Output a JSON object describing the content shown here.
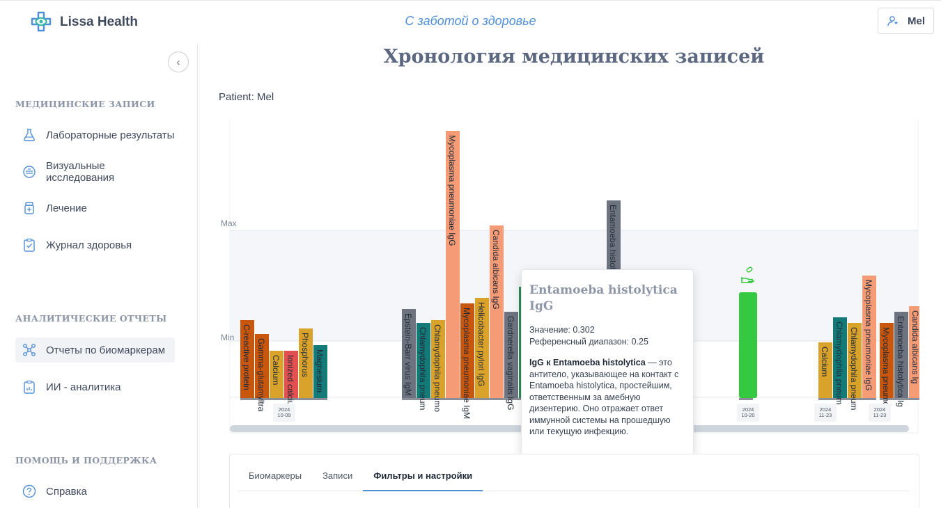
{
  "header": {
    "brand": "Lissa Health",
    "tagline": "С заботой о здоровье",
    "user_name": "Mel"
  },
  "sidebar": {
    "sections": [
      {
        "title": "Медицинские записи",
        "items": [
          {
            "label": "Лабораторные результаты",
            "icon": "flask-icon"
          },
          {
            "label": "Визуальные исследования",
            "icon": "imaging-icon"
          },
          {
            "label": "Лечение",
            "icon": "medication-icon"
          },
          {
            "label": "Журнал здоровья",
            "icon": "clipboard-check-icon"
          }
        ]
      },
      {
        "title": "Аналитические отчеты",
        "items": [
          {
            "label": "Отчеты по биомаркерам",
            "icon": "network-icon",
            "active": true
          },
          {
            "label": "ИИ - аналитика",
            "icon": "report-icon"
          }
        ]
      },
      {
        "title": "Помощь и поддержка",
        "items": [
          {
            "label": "Справка",
            "icon": "help-circle-icon"
          }
        ]
      }
    ]
  },
  "main": {
    "title": "Хронология медицинских записей",
    "patient_label": "Patient: Mel"
  },
  "chart_data": {
    "type": "bar",
    "y_reference_lines": [
      "Max",
      "Min"
    ],
    "date_labels": [
      "2024\n10-09",
      "2024\n10-20",
      "2024\n11-23",
      "2024\n11-23"
    ],
    "groups": [
      {
        "date": "2024-10-09",
        "bars": [
          {
            "label": "C-reactive protein",
            "value": 0.28,
            "color": "#c9560d"
          },
          {
            "label": "Gamma-glutamyltra",
            "value": 0.23,
            "color": "#c9560d"
          },
          {
            "label": "Calcium",
            "value": 0.17,
            "color": "#d9a22a"
          },
          {
            "label": "Ionized calciu",
            "value": 0.17,
            "color": "#e2504f"
          },
          {
            "label": "Phosphorus",
            "value": 0.25,
            "color": "#d9a22a"
          },
          {
            "label": "Magnesium",
            "value": 0.19,
            "color": "#137a78"
          }
        ]
      },
      {
        "date": "",
        "bars": [
          {
            "label": "Epstein-Barr virus IgM",
            "value": 0.32,
            "color": "#6d747f"
          },
          {
            "label": "Chlamydophila pneum",
            "value": 0.27,
            "color": "#137a78"
          },
          {
            "label": "Chlamydophila pneumo",
            "value": 0.28,
            "color": "#d9a22a"
          },
          {
            "label": "Mycoplasma pneumoniae IgG",
            "value": 0.96,
            "color": "#f59b75"
          },
          {
            "label": "Mycoplasma pneumoniae IgM",
            "value": 0.34,
            "color": "#c9560d"
          },
          {
            "label": "Helicobacter pylori IgG",
            "value": 0.36,
            "color": "#d9a22a"
          },
          {
            "label": "Candida albicans IgG",
            "value": 0.62,
            "color": "#f59b75"
          },
          {
            "label": "Gardnerella vaginalis IgG",
            "value": 0.31,
            "color": "#6d747f"
          },
          {
            "label": "",
            "value": 0.4,
            "color": "#2f8a55"
          }
        ]
      },
      {
        "date": "",
        "bars": [
          {
            "label": "Entamoeba histolytica IgG",
            "value": 0.71,
            "color": "#6d747f"
          }
        ]
      },
      {
        "date": "2024-10-20",
        "bars": [
          {
            "label": "",
            "value": 0.38,
            "color": "#34c941"
          }
        ]
      },
      {
        "date": "2024-11-23",
        "bars": [
          {
            "label": "Calcium",
            "value": 0.2,
            "color": "#d9a22a"
          },
          {
            "label": "Chlamydophila pneum",
            "value": 0.29,
            "color": "#137a78"
          },
          {
            "label": "Chlamydophila pneum",
            "value": 0.27,
            "color": "#d9a22a"
          },
          {
            "label": "Mycoplasma pneumoniae IgG",
            "value": 0.44,
            "color": "#f59b75"
          }
        ]
      },
      {
        "date": "2024-11-23",
        "bars": [
          {
            "label": "Mycoplasma pneumo",
            "value": 0.27,
            "color": "#c9560d"
          },
          {
            "label": "Entamoeba histolytica Ig",
            "value": 0.31,
            "color": "#6d747f"
          },
          {
            "label": "Candida albicans Ig",
            "value": 0.33,
            "color": "#f59b75"
          }
        ]
      }
    ]
  },
  "tooltip": {
    "title": "Entamoeba histolytica IgG",
    "value_line": "Значение: 0.302",
    "range_line": "Референсный диапазон: 0.25",
    "desc_bold": "IgG к Entamoeba histolytica",
    "desc_rest": " — это антитело, указывающее на контакт с Entamoeba histolytica, простейшим, ответственным за амебную дизентерию. Оно отражает ответ иммунной системы на прошедшую или текущую инфекцию."
  },
  "tabs": [
    {
      "label": "Биомаркеры"
    },
    {
      "label": "Записи"
    },
    {
      "label": "Фильтры и настройки",
      "active": true
    }
  ]
}
